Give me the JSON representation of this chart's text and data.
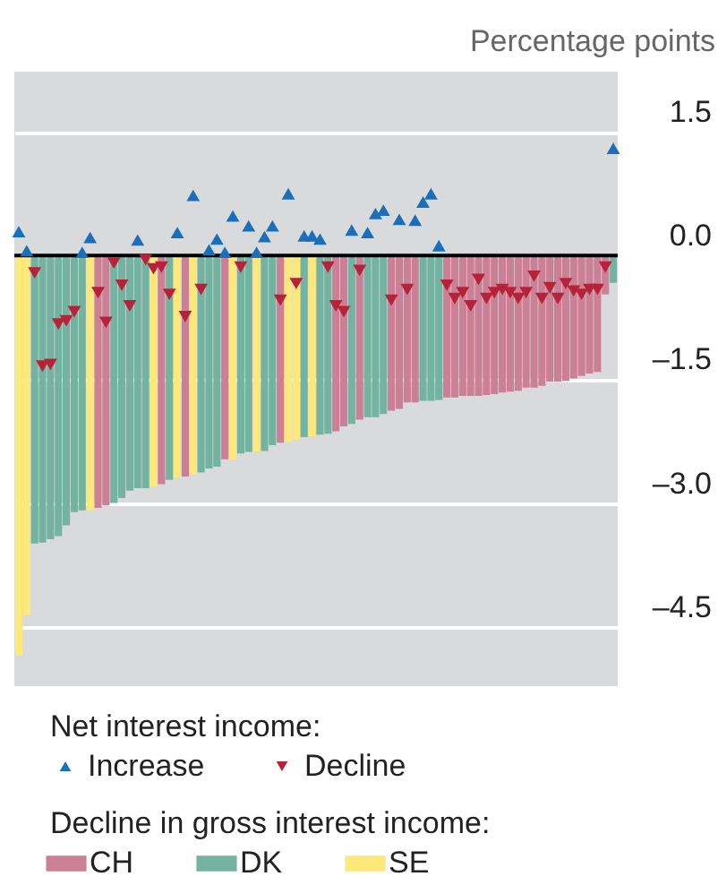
{
  "chart_data": {
    "type": "bar",
    "ylabel": "Percentage points",
    "legend_title": [
      "Net interest income:",
      "Decline in gross interest income:"
    ],
    "legend": "bottom",
    "tick_labels": "y",
    "grid": "y",
    "categories": [
      null,
      null,
      null,
      null,
      null,
      null,
      null,
      null,
      null,
      null,
      null,
      null,
      null,
      null,
      null,
      null,
      null,
      null,
      null,
      null,
      null,
      null,
      null,
      null,
      null,
      null,
      null,
      null,
      null,
      null,
      null,
      null,
      null,
      null,
      null,
      null,
      null,
      null,
      null,
      null,
      null,
      null,
      null,
      null,
      null,
      null,
      null,
      null,
      null,
      null,
      null,
      null,
      null,
      null,
      null,
      null,
      null,
      null,
      null,
      null,
      null,
      null,
      null,
      null,
      null,
      null,
      null,
      null,
      null,
      null,
      null,
      null,
      null,
      null,
      null,
      null
    ],
    "ylim": [
      -5.22,
      2.23
    ],
    "yticks": [
      {
        "value": -4.5,
        "label": "–4.5"
      },
      {
        "value": -3.0,
        "label": "–3.0"
      },
      {
        "value": -1.5,
        "label": "–1.5"
      },
      {
        "value": 0,
        "label": "0.0"
      },
      1.5
    ],
    "ref_lines": [
      {
        "axis": "y",
        "value": 0,
        "color": "#000000"
      }
    ],
    "series": [
      {
        "name": "CH",
        "type": "bar",
        "color": "#cc8096",
        "values": [
          null,
          null,
          null,
          null,
          null,
          null,
          null,
          null,
          null,
          null,
          -3.06,
          -3.03,
          null,
          null,
          null,
          null,
          null,
          null,
          -2.77,
          null,
          null,
          -2.68,
          null,
          null,
          null,
          null,
          -2.47,
          null,
          null,
          null,
          null,
          null,
          null,
          -2.27,
          null,
          null,
          null,
          null,
          null,
          null,
          -2.13,
          -2.07,
          null,
          -1.99,
          null,
          null,
          null,
          -1.88,
          -1.86,
          -1.78,
          -1.78,
          null,
          null,
          null,
          -1.72,
          -1.72,
          -1.7,
          -1.7,
          -1.7,
          -1.69,
          -1.68,
          -1.66,
          -1.65,
          -1.64,
          -1.6,
          -1.6,
          -1.58,
          -1.53,
          -1.53,
          -1.52,
          -1.49,
          -1.46,
          -1.43,
          -1.41,
          -0.47,
          null
        ]
      },
      {
        "name": "DK",
        "type": "bar",
        "color": "#74b3a0",
        "values": [
          null,
          null,
          -3.49,
          -3.48,
          -3.44,
          -3.4,
          -3.27,
          -3.11,
          -3.09,
          null,
          null,
          null,
          -3.0,
          -2.94,
          -2.85,
          -2.82,
          -2.82,
          null,
          null,
          -2.72,
          null,
          null,
          null,
          -2.63,
          -2.58,
          -2.56,
          null,
          null,
          -2.4,
          -2.38,
          null,
          -2.37,
          -2.3,
          null,
          null,
          null,
          -2.2,
          null,
          -2.17,
          -2.16,
          null,
          null,
          -2.04,
          null,
          -1.96,
          -1.96,
          -1.92,
          null,
          null,
          null,
          null,
          -1.76,
          -1.76,
          -1.75,
          null,
          null,
          null,
          null,
          null,
          null,
          null,
          null,
          null,
          null,
          null,
          null,
          null,
          null,
          null,
          null,
          null,
          null,
          null,
          null,
          null,
          -0.33
        ]
      },
      {
        "name": "SE",
        "type": "bar",
        "color": "#fde97a",
        "values": [
          -4.85,
          -4.36,
          null,
          null,
          null,
          null,
          null,
          null,
          null,
          -3.09,
          null,
          null,
          null,
          null,
          null,
          null,
          null,
          -2.8,
          null,
          null,
          -2.69,
          null,
          -2.65,
          null,
          null,
          null,
          null,
          -2.47,
          null,
          null,
          -2.38,
          null,
          null,
          null,
          -2.26,
          -2.23,
          null,
          -2.19,
          null,
          null,
          null,
          null,
          null,
          null,
          null,
          null,
          null,
          null,
          null,
          null,
          null,
          null,
          null,
          null,
          null,
          null,
          null,
          null,
          null,
          null,
          null,
          null,
          null,
          null,
          null,
          null,
          null,
          null,
          null,
          null,
          null,
          null,
          null,
          null,
          null,
          null
        ]
      },
      {
        "name": "Increase",
        "type": "scatter",
        "marker": "triangle",
        "color": "#1a6fba",
        "values": [
          0.29,
          0.06,
          null,
          null,
          null,
          null,
          null,
          null,
          0.04,
          0.22,
          null,
          null,
          null,
          null,
          null,
          0.19,
          null,
          null,
          null,
          null,
          0.28,
          null,
          0.73,
          null,
          0.07,
          0.2,
          0.04,
          0.48,
          null,
          0.36,
          0.04,
          0.23,
          0.36,
          null,
          0.75,
          null,
          0.24,
          0.24,
          0.2,
          null,
          null,
          null,
          0.31,
          null,
          0.28,
          0.51,
          0.55,
          null,
          0.44,
          null,
          0.43,
          0.65,
          0.75,
          0.12,
          null,
          null,
          null,
          null,
          null,
          null,
          null,
          null,
          null,
          null,
          null,
          null,
          null,
          null,
          null,
          null,
          null,
          null,
          null,
          null,
          null,
          1.3
        ]
      },
      {
        "name": "Decline",
        "type": "scatter",
        "marker": "triangle",
        "color": "#b8213a",
        "values": [
          null,
          null,
          -0.21,
          -1.34,
          -1.32,
          -0.83,
          -0.79,
          -0.68,
          null,
          null,
          -0.45,
          -0.81,
          -0.09,
          -0.36,
          -0.61,
          null,
          -0.05,
          -0.16,
          -0.14,
          -0.47,
          null,
          -0.74,
          null,
          -0.41,
          null,
          null,
          null,
          null,
          -0.14,
          null,
          null,
          null,
          null,
          -0.54,
          null,
          -0.34,
          null,
          null,
          null,
          -0.14,
          -0.61,
          -0.68,
          null,
          -0.18,
          null,
          null,
          null,
          -0.54,
          null,
          -0.41,
          null,
          null,
          null,
          null,
          -0.36,
          -0.52,
          -0.45,
          -0.61,
          -0.29,
          -0.52,
          -0.45,
          -0.41,
          -0.45,
          -0.52,
          -0.45,
          -0.25,
          -0.52,
          -0.39,
          -0.52,
          -0.34,
          -0.43,
          -0.47,
          -0.41,
          -0.41,
          -0.14,
          null
        ]
      }
    ]
  }
}
